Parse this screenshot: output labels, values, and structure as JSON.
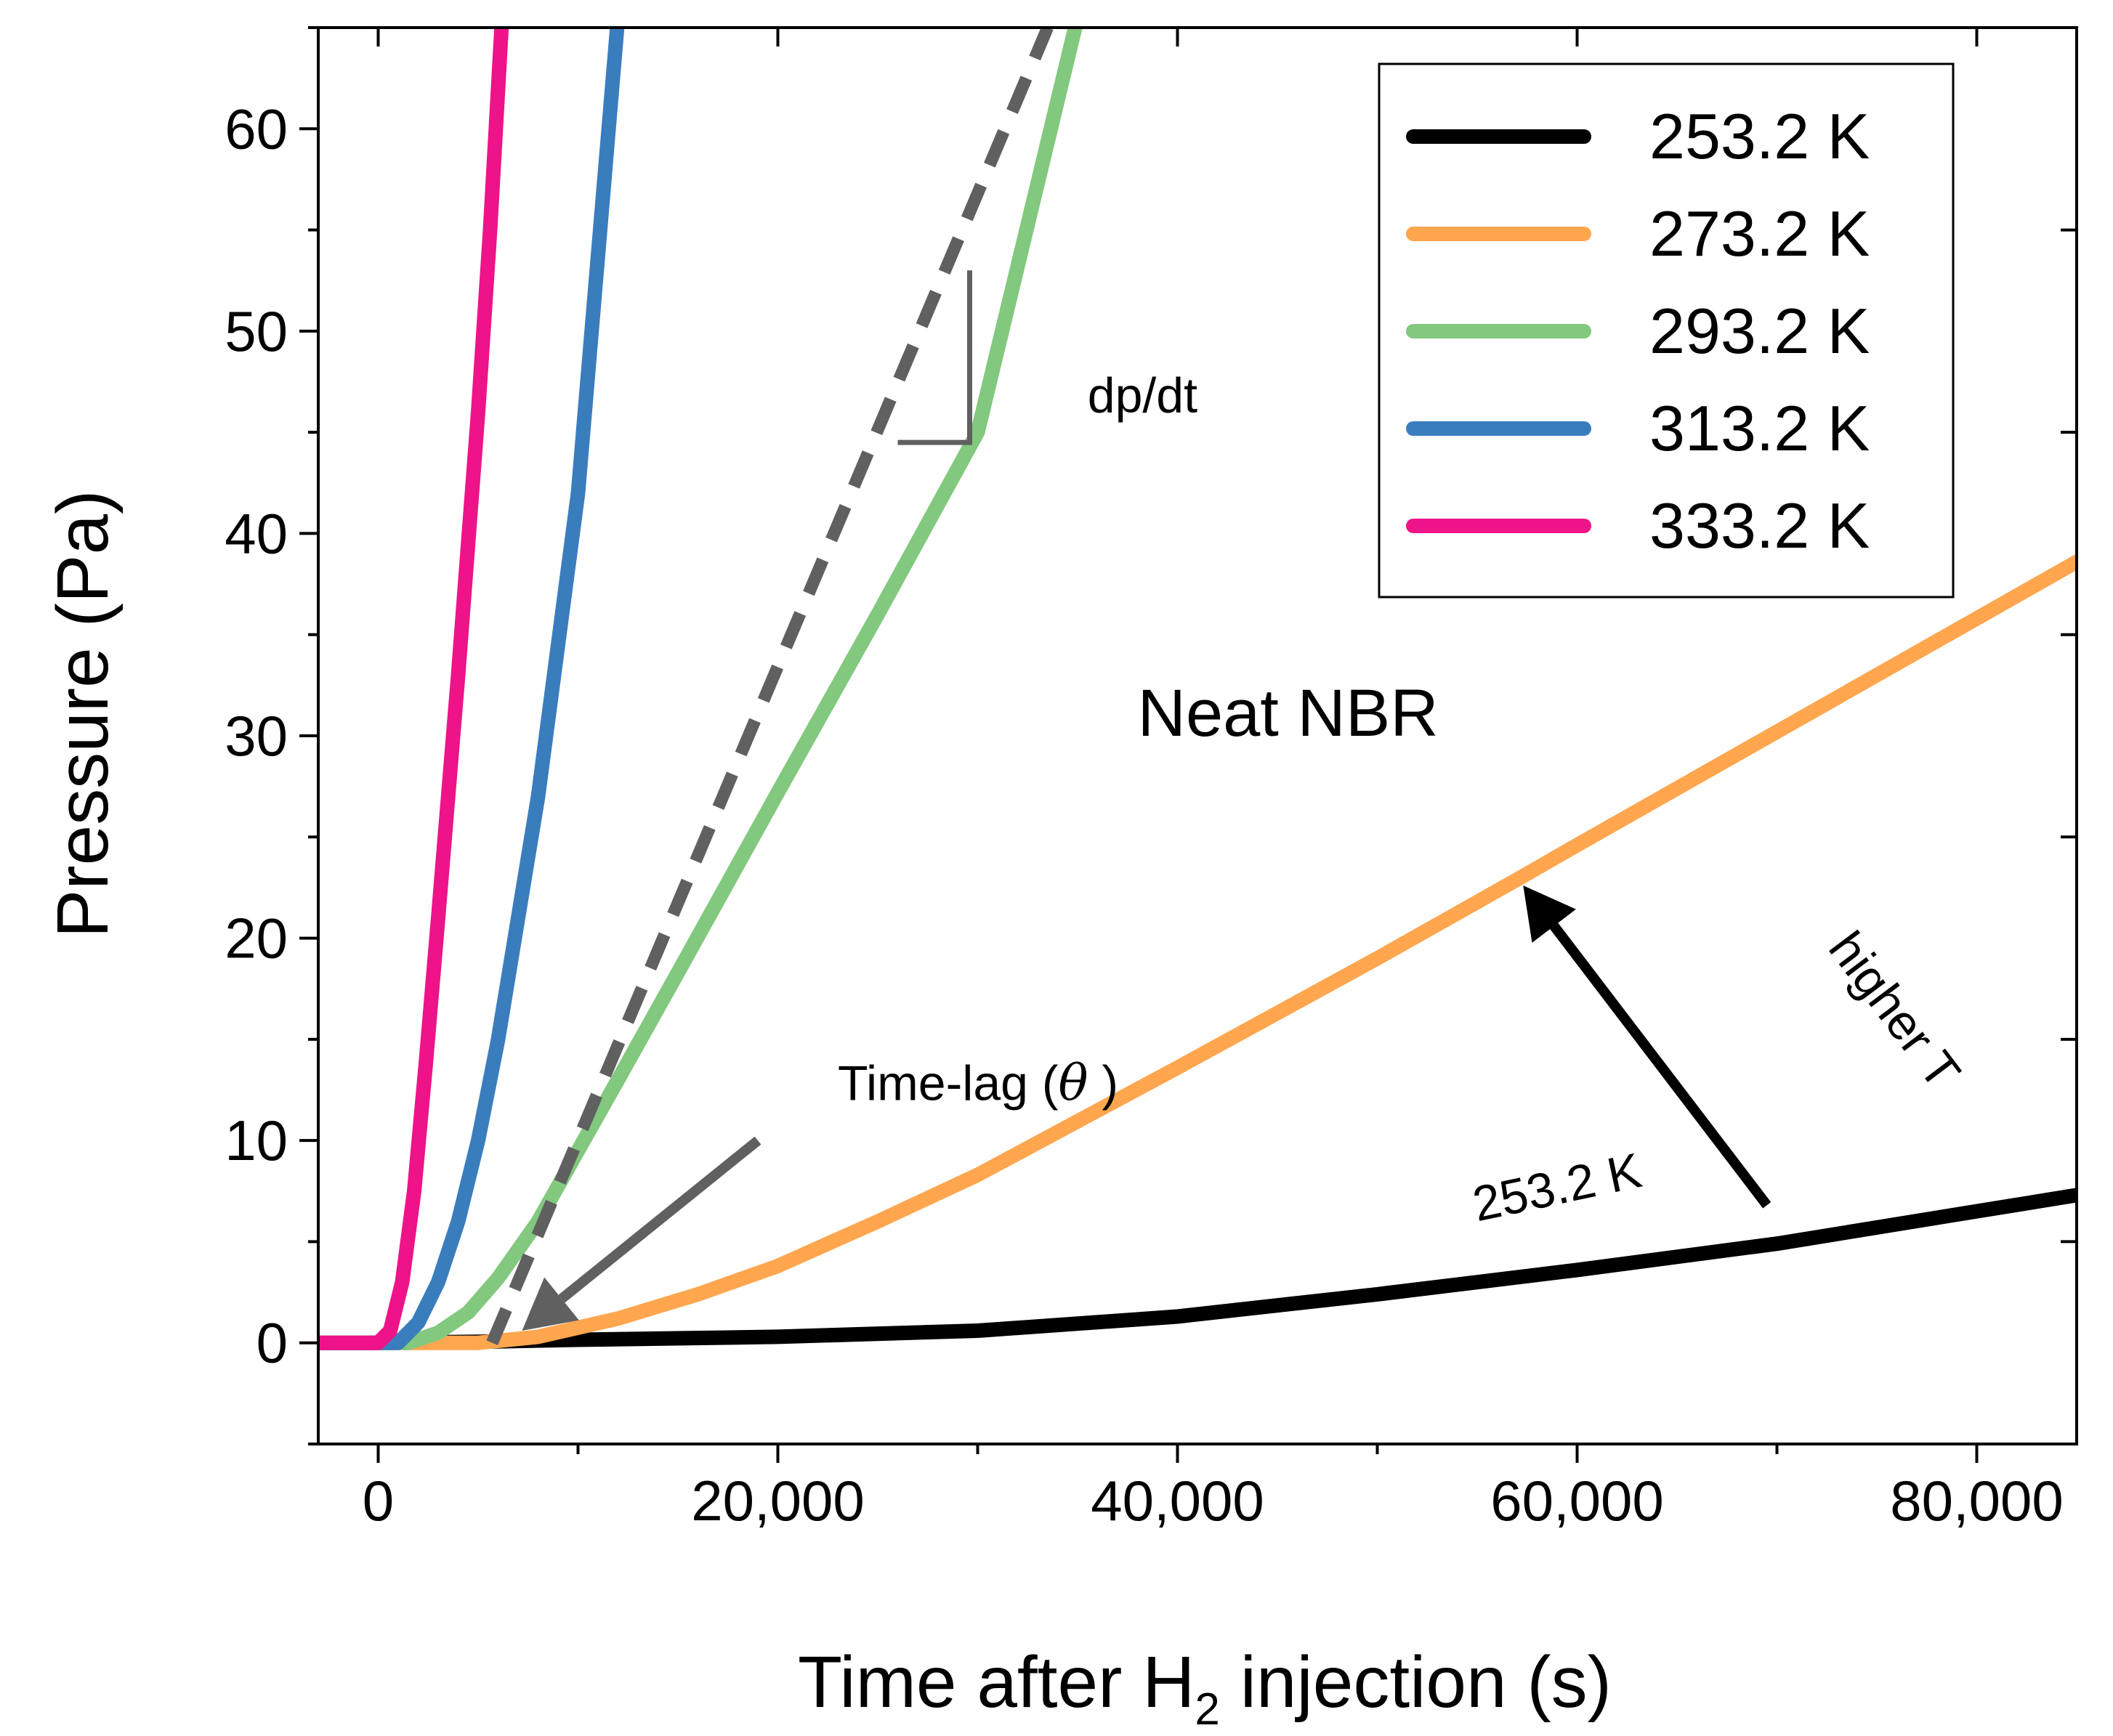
{
  "chart_data": {
    "type": "line",
    "title": "",
    "xlabel": "Time after H",
    "xlabel_sub": "2",
    "xlabel_tail": " injection (s)",
    "ylabel": "Pressure (Pa)",
    "xlim": [
      -3000,
      85000
    ],
    "ylim": [
      -5,
      65
    ],
    "x_ticks": [
      0,
      20000,
      40000,
      60000,
      80000
    ],
    "x_tick_labels": [
      "0",
      "20,000",
      "40,000",
      "60,000",
      "80,000"
    ],
    "x_minor_ticks": [
      10000,
      30000,
      50000,
      70000
    ],
    "y_ticks": [
      0,
      10,
      20,
      30,
      40,
      50,
      60
    ],
    "y_tick_labels": [
      "0",
      "10",
      "20",
      "30",
      "40",
      "50",
      "60"
    ],
    "y_minor_step": 5,
    "series": [
      {
        "name": "253.2 K",
        "color": "#000000",
        "points": [
          [
            -3000,
            0
          ],
          [
            0,
            0
          ],
          [
            5000,
            0.05
          ],
          [
            10000,
            0.15
          ],
          [
            20000,
            0.3
          ],
          [
            30000,
            0.6
          ],
          [
            40000,
            1.3
          ],
          [
            50000,
            2.4
          ],
          [
            60000,
            3.6
          ],
          [
            70000,
            4.9
          ],
          [
            80000,
            6.5
          ],
          [
            85000,
            7.3
          ]
        ]
      },
      {
        "name": "273.2 K",
        "color": "#ffa64f",
        "points": [
          [
            -3000,
            0
          ],
          [
            0,
            0
          ],
          [
            5000,
            0
          ],
          [
            8000,
            0.3
          ],
          [
            12000,
            1.2
          ],
          [
            16000,
            2.4
          ],
          [
            20000,
            3.8
          ],
          [
            25000,
            6.0
          ],
          [
            30000,
            8.3
          ],
          [
            40000,
            13.6
          ],
          [
            50000,
            19.0
          ],
          [
            57000,
            22.9
          ],
          [
            60000,
            24.6
          ],
          [
            70000,
            30.2
          ],
          [
            80000,
            35.8
          ],
          [
            85000,
            38.6
          ]
        ]
      },
      {
        "name": "293.2 K",
        "color": "#82c87e",
        "points": [
          [
            -3000,
            0
          ],
          [
            1500,
            0
          ],
          [
            3000,
            0.5
          ],
          [
            4500,
            1.5
          ],
          [
            6000,
            3.2
          ],
          [
            8000,
            6.0
          ],
          [
            10000,
            9.5
          ],
          [
            12000,
            13.0
          ],
          [
            15000,
            18.3
          ],
          [
            20000,
            27.2
          ],
          [
            25000,
            36.0
          ],
          [
            30000,
            45.0
          ],
          [
            35000,
            65.5
          ]
        ]
      },
      {
        "name": "313.2 K",
        "color": "#3a7dbd",
        "points": [
          [
            -3000,
            0
          ],
          [
            1000,
            0
          ],
          [
            2000,
            1.0
          ],
          [
            3000,
            3.0
          ],
          [
            4000,
            6.0
          ],
          [
            5000,
            10.0
          ],
          [
            6000,
            15.0
          ],
          [
            8000,
            27.0
          ],
          [
            10000,
            42.0
          ],
          [
            12000,
            65.5
          ]
        ]
      },
      {
        "name": "333.2 K",
        "color": "#ee1388",
        "points": [
          [
            -3000,
            0
          ],
          [
            0,
            0
          ],
          [
            600,
            0.6
          ],
          [
            1200,
            3.0
          ],
          [
            1800,
            7.5
          ],
          [
            2400,
            14.0
          ],
          [
            3000,
            21.0
          ],
          [
            4000,
            33.0
          ],
          [
            5000,
            46.0
          ],
          [
            5600,
            55.0
          ],
          [
            6200,
            65.5
          ]
        ]
      }
    ],
    "fit_line": {
      "color": "#606060",
      "points": [
        [
          5700,
          0
        ],
        [
          33500,
          65
        ]
      ]
    },
    "slope_triangle": {
      "color": "#606060",
      "points": [
        [
          26000,
          44.5
        ],
        [
          29600,
          44.5
        ],
        [
          29600,
          53.0
        ]
      ]
    },
    "arrows": [
      {
        "name": "time-lag-arrow",
        "color": "#606060",
        "from": [
          19000,
          10.0
        ],
        "to": [
          7200,
          0.6
        ]
      },
      {
        "name": "higher-t-arrow",
        "color": "#000000",
        "from": [
          69500,
          6.8
        ],
        "to": [
          57300,
          22.6
        ]
      }
    ],
    "annotations": [
      {
        "name": "neat-nbr-label",
        "text": "Neat NBR",
        "x": 38000,
        "y": 30,
        "size": 92,
        "rotate": 0
      },
      {
        "name": "dp-dt-label",
        "text": "dp/dt",
        "x": 35500,
        "y": 46,
        "size": 68,
        "rotate": 0
      },
      {
        "name": "time-lag-label",
        "text": "Time-lag (",
        "symbol": "θ",
        "close": " )",
        "x": 23000,
        "y": 12,
        "size": 68,
        "rotate": 0
      },
      {
        "name": "series-253-label",
        "text": "253.2 K",
        "x": 55000,
        "y": 6.0,
        "size": 68,
        "rotate": -12
      },
      {
        "name": "higher-t-label",
        "text": "higher T",
        "x": 72500,
        "y": 19.5,
        "size": 68,
        "rotate": 53
      }
    ],
    "legend": {
      "position": "top-right",
      "entries": [
        "253.2 K",
        "273.2 K",
        "293.2 K",
        "313.2 K",
        "333.2 K"
      ]
    }
  }
}
